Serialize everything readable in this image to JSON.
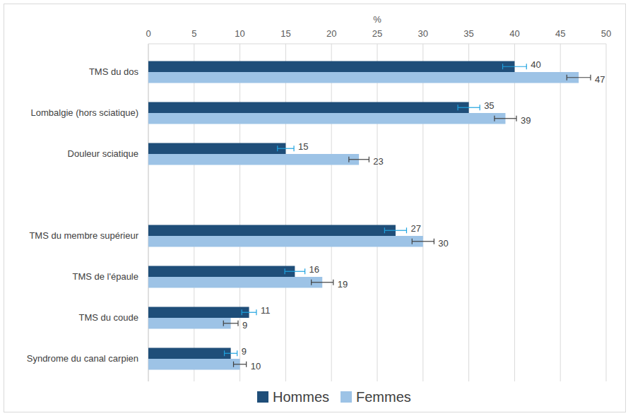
{
  "chart_data": {
    "type": "bar",
    "orientation": "horizontal",
    "x_label": "%",
    "categories": [
      "TMS du dos",
      "Lombalgie (hors sciatique)",
      "Douleur sciatique",
      null,
      "TMS du membre supérieur",
      "TMS de l'épaule",
      "TMS du coude",
      "Syndrome du canal carpien"
    ],
    "series": [
      {
        "name": "Hommes",
        "color": "#1f4e79",
        "values": [
          40,
          35,
          15,
          null,
          27,
          16,
          11,
          9
        ],
        "errors": [
          1.3,
          1.2,
          0.9,
          null,
          1.2,
          1.1,
          0.8,
          0.7
        ]
      },
      {
        "name": "Femmes",
        "color": "#9dc3e6",
        "values": [
          47,
          39,
          23,
          null,
          30,
          19,
          9,
          10
        ],
        "errors": [
          1.3,
          1.2,
          1.1,
          null,
          1.2,
          1.2,
          0.8,
          0.7
        ]
      }
    ],
    "xlim": [
      0,
      50
    ],
    "xticks": [
      0,
      5,
      10,
      15,
      20,
      25,
      30,
      35,
      40,
      45,
      50
    ],
    "grid": true,
    "data_labels": true,
    "legend": "bottom"
  }
}
